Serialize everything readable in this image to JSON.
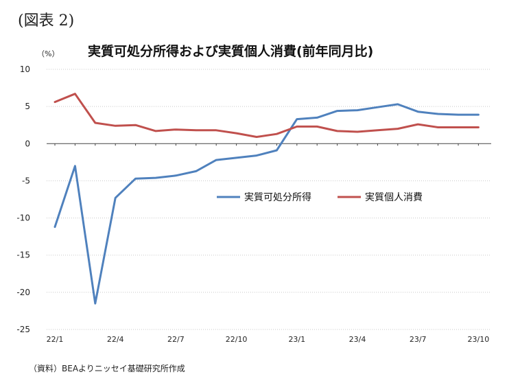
{
  "figure_label": "(図表 2)",
  "source_note": "（資料）BEAよりニッセイ基礎研究所作成",
  "chart_data": {
    "type": "line",
    "title": "実質可処分所得および実質個人消費(前年同月比)",
    "ylabel": "（%）",
    "xlabel": "",
    "ylim": [
      -25,
      10
    ],
    "yticks": [
      10,
      5,
      0,
      -5,
      -10,
      -15,
      -20,
      -25
    ],
    "grid": true,
    "legend_position": "center-right",
    "categories": [
      "22/1",
      "22/2",
      "22/3",
      "22/4",
      "22/5",
      "22/6",
      "22/7",
      "22/8",
      "22/9",
      "22/10",
      "22/11",
      "22/12",
      "23/1",
      "23/2",
      "23/3",
      "23/4",
      "23/5",
      "23/6",
      "23/7",
      "23/8",
      "23/9",
      "23/10"
    ],
    "x_tick_labels": [
      "22/1",
      "22/4",
      "22/7",
      "22/10",
      "23/1",
      "23/4",
      "23/7",
      "23/10"
    ],
    "series": [
      {
        "name": "実質可処分所得",
        "color": "#4f81bd",
        "values": [
          -11.2,
          -3.0,
          -21.5,
          -7.3,
          -4.7,
          -4.6,
          -4.3,
          -3.7,
          -2.2,
          -1.9,
          -1.6,
          -0.9,
          3.3,
          3.5,
          4.4,
          4.5,
          4.9,
          5.3,
          4.3,
          4.0,
          3.9,
          3.9
        ]
      },
      {
        "name": "実質個人消費",
        "color": "#c0504d",
        "values": [
          5.6,
          6.7,
          2.8,
          2.4,
          2.5,
          1.7,
          1.9,
          1.8,
          1.8,
          1.4,
          0.9,
          1.3,
          2.3,
          2.3,
          1.7,
          1.6,
          1.8,
          2.0,
          2.6,
          2.2,
          2.2,
          2.2
        ]
      }
    ]
  }
}
